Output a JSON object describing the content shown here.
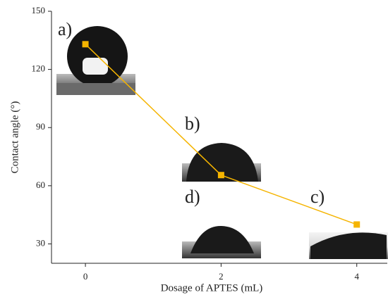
{
  "chart_data": {
    "type": "line",
    "x_label": "Dosage of APTES (mL)",
    "y_label": "Contact angle (°)",
    "series": [
      {
        "color": "#f5b400",
        "x": [
          0,
          2,
          4
        ],
        "values": [
          133,
          65.5,
          40
        ]
      }
    ],
    "xlim": [
      -0.5,
      4.45
    ],
    "xticks": [
      0,
      2,
      4
    ],
    "ylim": [
      20,
      150
    ],
    "yticks": [
      30,
      60,
      90,
      120,
      150
    ],
    "annotations": [
      "a)",
      "b)",
      "c)",
      "d)"
    ]
  }
}
